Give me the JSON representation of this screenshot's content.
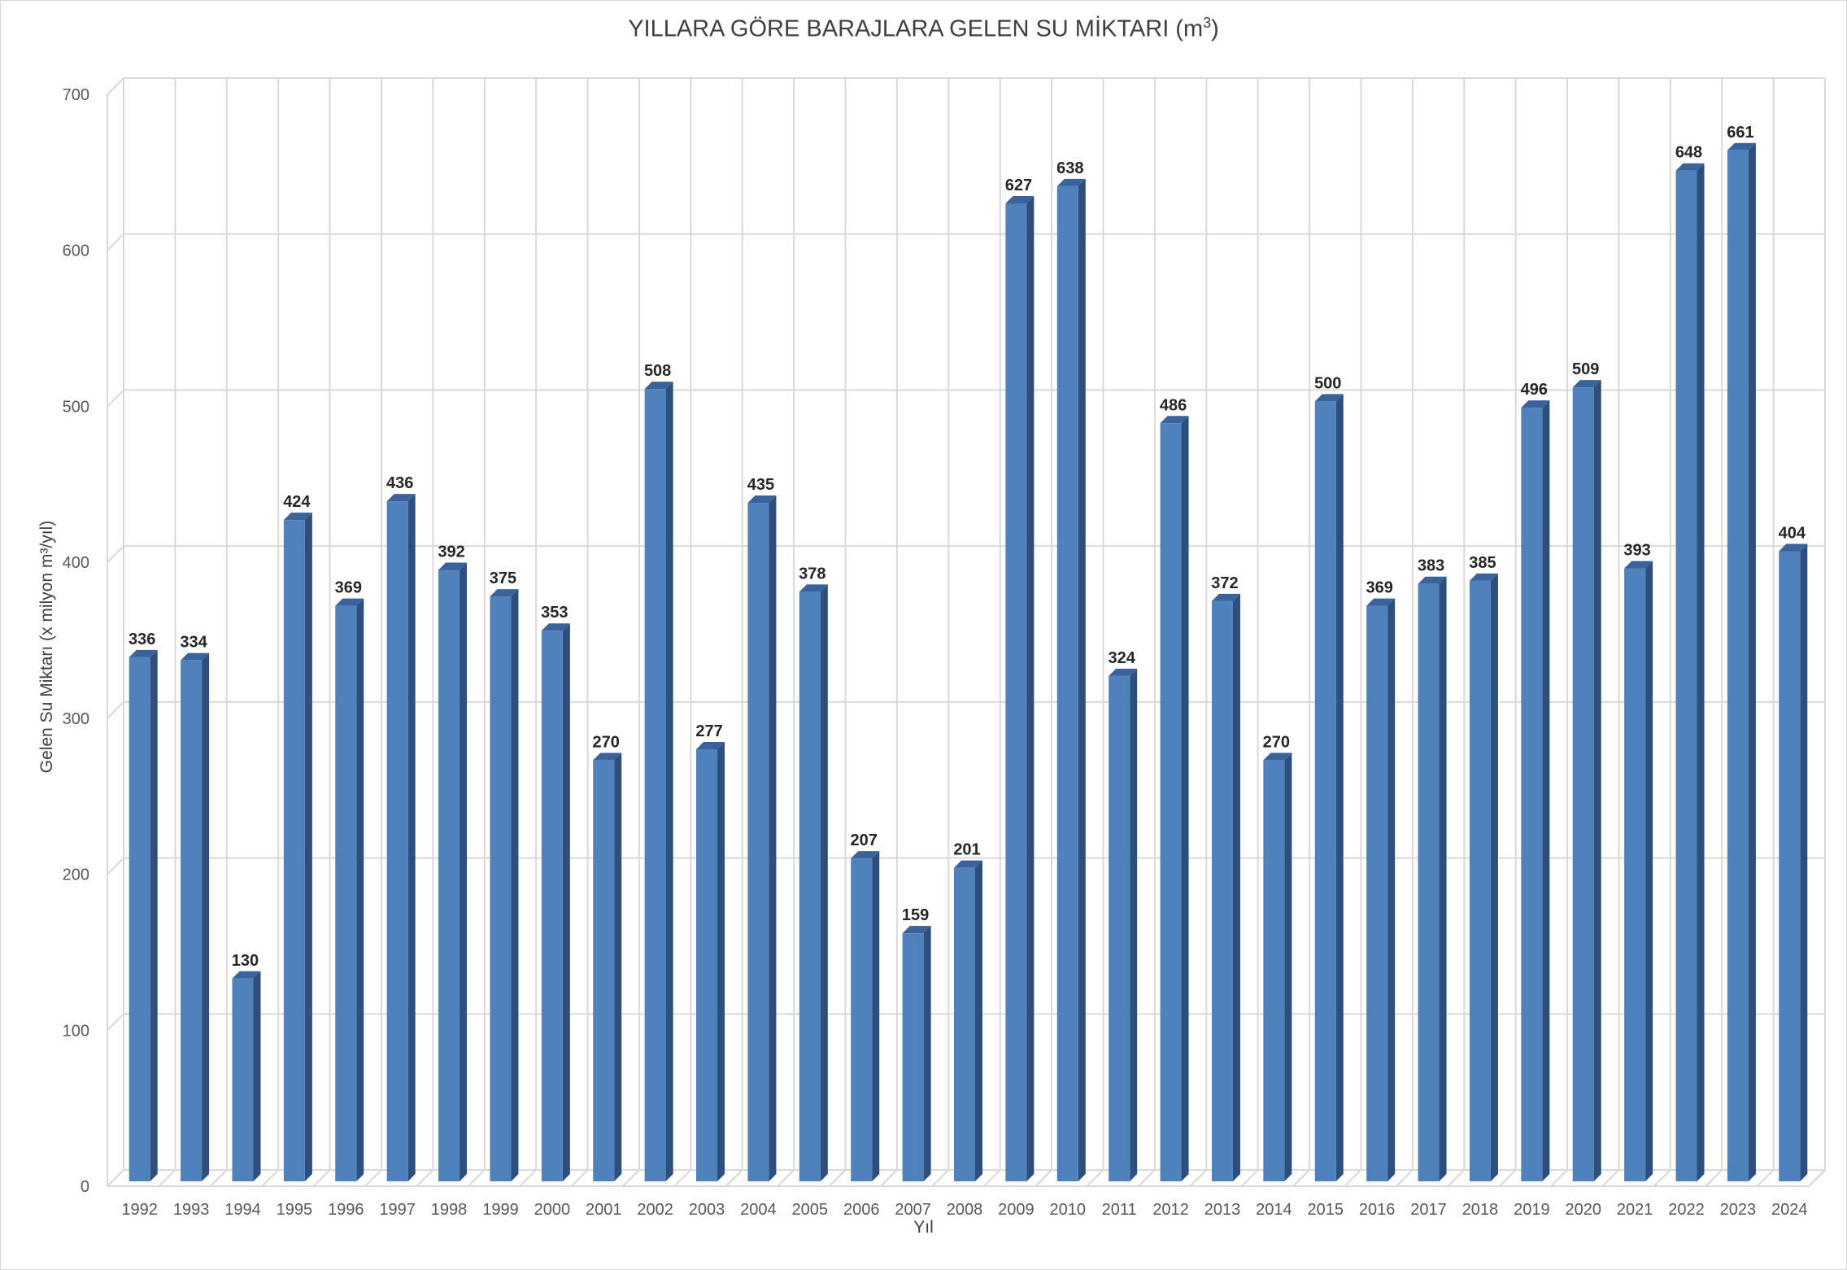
{
  "chart_data": {
    "type": "bar",
    "title": "YILLARA GÖRE BARAJLARA GELEN SU MİKTARI (m",
    "title_superscript": "3",
    "title_suffix": ")",
    "ylabel": "Gelen Su Miktarı (x milyon m³/yıl)",
    "xlabel": "Yıl",
    "ylim": [
      0,
      700
    ],
    "yticks": [
      0,
      100,
      200,
      300,
      400,
      500,
      600,
      700
    ],
    "grid": true,
    "style": "3d-column",
    "bar_color": "#4f81bd",
    "bar_side_color": "#2e4f7c",
    "bar_top_color": "#3a639c",
    "categories": [
      "1992",
      "1993",
      "1994",
      "1995",
      "1996",
      "1997",
      "1998",
      "1999",
      "2000",
      "2001",
      "2002",
      "2003",
      "2004",
      "2005",
      "2006",
      "2007",
      "2008",
      "2009",
      "2010",
      "2011",
      "2012",
      "2013",
      "2014",
      "2015",
      "2016",
      "2017",
      "2018",
      "2019",
      "2020",
      "2021",
      "2022",
      "2023",
      "2024"
    ],
    "values": [
      336,
      334,
      130,
      424,
      369,
      436,
      392,
      375,
      353,
      270,
      508,
      277,
      435,
      378,
      207,
      159,
      201,
      627,
      638,
      324,
      486,
      372,
      270,
      500,
      369,
      383,
      385,
      496,
      509,
      393,
      648,
      661,
      404
    ]
  }
}
